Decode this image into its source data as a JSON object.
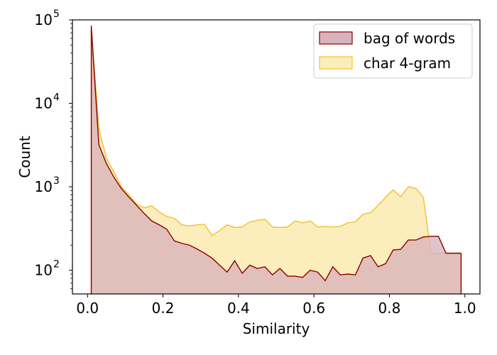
{
  "chart_data": {
    "type": "area",
    "title": "",
    "xlabel": "Similarity",
    "ylabel": "Count",
    "xlim": [
      -0.04,
      1.04
    ],
    "ylim": [
      52,
      100000
    ],
    "yscale": "log",
    "legend_position": "top-right",
    "x_ticks": [
      {
        "value": 0.0,
        "label": "0.0"
      },
      {
        "value": 0.2,
        "label": "0.2"
      },
      {
        "value": 0.4,
        "label": "0.4"
      },
      {
        "value": 0.6,
        "label": "0.6"
      },
      {
        "value": 0.8,
        "label": "0.8"
      },
      {
        "value": 1.0,
        "label": "1.0"
      }
    ],
    "y_ticks": [
      {
        "value": 100,
        "base": "10",
        "exp": "2"
      },
      {
        "value": 1000,
        "base": "10",
        "exp": "3"
      },
      {
        "value": 10000,
        "base": "10",
        "exp": "4"
      },
      {
        "value": 100000,
        "base": "10",
        "exp": "5"
      }
    ],
    "x": [
      0.01,
      0.03,
      0.05,
      0.07,
      0.09,
      0.11,
      0.13,
      0.15,
      0.17,
      0.19,
      0.21,
      0.23,
      0.25,
      0.27,
      0.29,
      0.31,
      0.33,
      0.35,
      0.37,
      0.39,
      0.41,
      0.43,
      0.45,
      0.47,
      0.49,
      0.51,
      0.53,
      0.55,
      0.57,
      0.59,
      0.61,
      0.63,
      0.65,
      0.67,
      0.69,
      0.71,
      0.73,
      0.75,
      0.77,
      0.79,
      0.81,
      0.83,
      0.85,
      0.87,
      0.89,
      0.91,
      0.93,
      0.95,
      0.97,
      0.99
    ],
    "series": [
      {
        "name": "bag of words",
        "fill": "#d9b3bc",
        "stroke": "#8b0000",
        "values": [
          85000,
          3200,
          1900,
          1300,
          950,
          750,
          600,
          480,
          390,
          350,
          310,
          225,
          210,
          200,
          180,
          160,
          140,
          115,
          95,
          130,
          92,
          115,
          105,
          110,
          88,
          105,
          85,
          85,
          82,
          100,
          95,
          75,
          110,
          88,
          90,
          88,
          140,
          150,
          110,
          120,
          175,
          178,
          230,
          230,
          250,
          255,
          255,
          160,
          160,
          160
        ]
      },
      {
        "name": "char 4-gram",
        "fill": "#fcedbc",
        "stroke": "#f2c12e",
        "values": [
          80000,
          5000,
          2200,
          1500,
          1000,
          800,
          620,
          560,
          590,
          500,
          440,
          420,
          350,
          340,
          350,
          355,
          260,
          300,
          350,
          325,
          330,
          380,
          395,
          410,
          330,
          325,
          330,
          390,
          370,
          390,
          330,
          335,
          330,
          335,
          370,
          380,
          470,
          490,
          600,
          750,
          920,
          760,
          1000,
          960,
          750,
          160,
          160,
          160,
          160,
          160
        ]
      }
    ]
  }
}
